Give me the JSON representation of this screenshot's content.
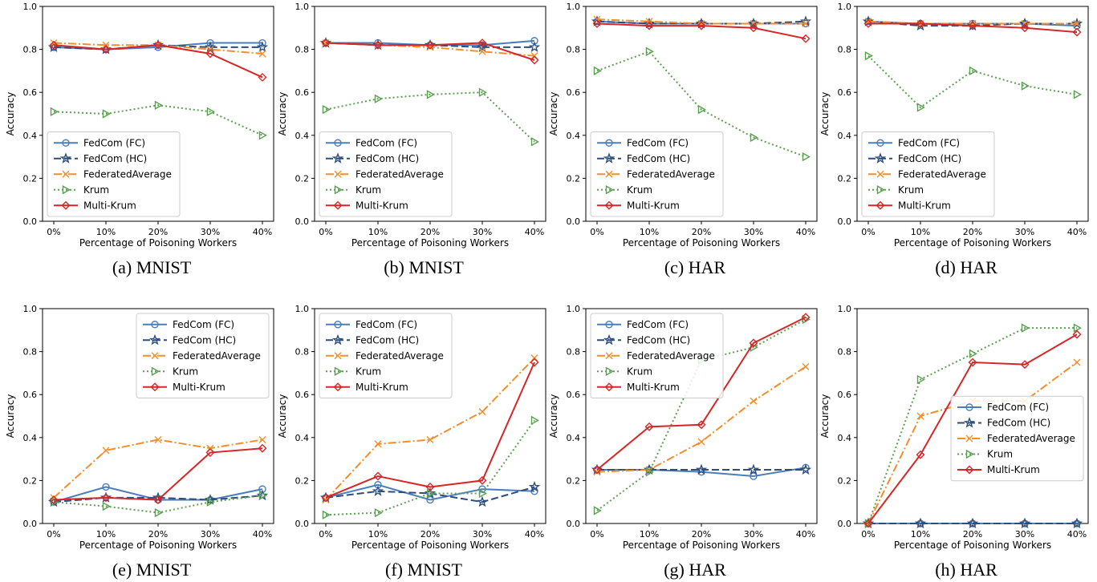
{
  "series_styles": {
    "FedCom (FC)": {
      "color": "#4a7ebb",
      "dash": "",
      "marker": "circle"
    },
    "FedCom (HC)": {
      "color": "#2e4d7a",
      "dash": "9,4",
      "marker": "star"
    },
    "FederatedAverage": {
      "color": "#f28e2b",
      "dash": "10,3,2,3",
      "marker": "x"
    },
    "Krum": {
      "color": "#59a14f",
      "dash": "2,3",
      "marker": "triangle"
    },
    "Multi-Krum": {
      "color": "#d62728",
      "dash": "",
      "marker": "diamond"
    }
  },
  "chart_data": [
    {
      "type": "line",
      "caption": "(a) MNIST",
      "categories": [
        "0%",
        "10%",
        "20%",
        "30%",
        "40%"
      ],
      "xlabel": "Percentage of Poisoning Workers",
      "ylabel": "Accuracy",
      "ylim": [
        0,
        1
      ],
      "yticks": [
        "0.0",
        "0.2",
        "0.4",
        "0.6",
        "0.8",
        "1.0"
      ],
      "grid": false,
      "legend_position": "lower-left",
      "series": [
        {
          "name": "FedCom (FC)",
          "values": [
            0.81,
            0.8,
            0.81,
            0.83,
            0.83
          ]
        },
        {
          "name": "FedCom (HC)",
          "values": [
            0.81,
            0.8,
            0.82,
            0.81,
            0.81
          ]
        },
        {
          "name": "FederatedAverage",
          "values": [
            0.83,
            0.82,
            0.82,
            0.8,
            0.78
          ]
        },
        {
          "name": "Krum",
          "values": [
            0.51,
            0.5,
            0.54,
            0.51,
            0.4
          ]
        },
        {
          "name": "Multi-Krum",
          "values": [
            0.82,
            0.8,
            0.82,
            0.78,
            0.67
          ]
        }
      ]
    },
    {
      "type": "line",
      "caption": "(b) MNIST",
      "categories": [
        "0%",
        "10%",
        "20%",
        "30%",
        "40%"
      ],
      "xlabel": "Percentage of Poisoning Workers",
      "ylabel": "Accuracy",
      "ylim": [
        0,
        1
      ],
      "yticks": [
        "0.0",
        "0.2",
        "0.4",
        "0.6",
        "0.8",
        "1.0"
      ],
      "grid": false,
      "legend_position": "lower-left",
      "series": [
        {
          "name": "FedCom (FC)",
          "values": [
            0.83,
            0.83,
            0.82,
            0.82,
            0.84
          ]
        },
        {
          "name": "FedCom (HC)",
          "values": [
            0.83,
            0.82,
            0.82,
            0.81,
            0.81
          ]
        },
        {
          "name": "FederatedAverage",
          "values": [
            0.83,
            0.82,
            0.81,
            0.79,
            0.77
          ]
        },
        {
          "name": "Krum",
          "values": [
            0.52,
            0.57,
            0.59,
            0.6,
            0.37
          ]
        },
        {
          "name": "Multi-Krum",
          "values": [
            0.83,
            0.82,
            0.82,
            0.83,
            0.75
          ]
        }
      ]
    },
    {
      "type": "line",
      "caption": "(c) HAR",
      "categories": [
        "0%",
        "10%",
        "20%",
        "30%",
        "40%"
      ],
      "xlabel": "Percentage of Poisoning Workers",
      "ylabel": "Accuracy",
      "ylim": [
        0,
        1
      ],
      "yticks": [
        "0.0",
        "0.2",
        "0.4",
        "0.6",
        "0.8",
        "1.0"
      ],
      "grid": false,
      "legend_position": "lower-left",
      "series": [
        {
          "name": "FedCom (FC)",
          "values": [
            0.93,
            0.92,
            0.92,
            0.92,
            0.92
          ]
        },
        {
          "name": "FedCom (HC)",
          "values": [
            0.93,
            0.92,
            0.92,
            0.92,
            0.93
          ]
        },
        {
          "name": "FederatedAverage",
          "values": [
            0.94,
            0.93,
            0.92,
            0.92,
            0.92
          ]
        },
        {
          "name": "Krum",
          "values": [
            0.7,
            0.79,
            0.52,
            0.39,
            0.3
          ]
        },
        {
          "name": "Multi-Krum",
          "values": [
            0.92,
            0.91,
            0.91,
            0.9,
            0.85
          ]
        }
      ]
    },
    {
      "type": "line",
      "caption": "(d) HAR",
      "categories": [
        "0%",
        "10%",
        "20%",
        "30%",
        "40%"
      ],
      "xlabel": "Percentage of Poisoning Workers",
      "ylabel": "Accuracy",
      "ylim": [
        0,
        1
      ],
      "yticks": [
        "0.0",
        "0.2",
        "0.4",
        "0.6",
        "0.8",
        "1.0"
      ],
      "grid": false,
      "legend_position": "lower-left",
      "series": [
        {
          "name": "FedCom (FC)",
          "values": [
            0.93,
            0.92,
            0.92,
            0.92,
            0.91
          ]
        },
        {
          "name": "FedCom (HC)",
          "values": [
            0.93,
            0.91,
            0.91,
            0.92,
            0.92
          ]
        },
        {
          "name": "FederatedAverage",
          "values": [
            0.93,
            0.92,
            0.92,
            0.92,
            0.92
          ]
        },
        {
          "name": "Krum",
          "values": [
            0.77,
            0.53,
            0.7,
            0.63,
            0.59
          ]
        },
        {
          "name": "Multi-Krum",
          "values": [
            0.92,
            0.92,
            0.91,
            0.9,
            0.88
          ]
        }
      ]
    },
    {
      "type": "line",
      "caption": "(e) MNIST",
      "categories": [
        "0%",
        "10%",
        "20%",
        "30%",
        "40%"
      ],
      "xlabel": "Percentage of Poisoning Workers",
      "ylabel": "Accuracy",
      "ylim": [
        0,
        1
      ],
      "yticks": [
        "0.0",
        "0.2",
        "0.4",
        "0.6",
        "0.8",
        "1.0"
      ],
      "grid": false,
      "legend_position": "top-right",
      "series": [
        {
          "name": "FedCom (FC)",
          "values": [
            0.1,
            0.17,
            0.11,
            0.11,
            0.16
          ]
        },
        {
          "name": "FedCom (HC)",
          "values": [
            0.1,
            0.12,
            0.12,
            0.11,
            0.13
          ]
        },
        {
          "name": "FederatedAverage",
          "values": [
            0.12,
            0.34,
            0.39,
            0.35,
            0.39
          ]
        },
        {
          "name": "Krum",
          "values": [
            0.1,
            0.08,
            0.05,
            0.1,
            0.13
          ]
        },
        {
          "name": "Multi-Krum",
          "values": [
            0.11,
            0.12,
            0.11,
            0.33,
            0.35
          ]
        }
      ]
    },
    {
      "type": "line",
      "caption": "(f) MNIST",
      "categories": [
        "0%",
        "10%",
        "20%",
        "30%",
        "40%"
      ],
      "xlabel": "Percentage of Poisoning Workers",
      "ylabel": "Accuracy",
      "ylim": [
        0,
        1
      ],
      "yticks": [
        "0.0",
        "0.2",
        "0.4",
        "0.6",
        "0.8",
        "1.0"
      ],
      "grid": false,
      "legend_position": "top-left",
      "series": [
        {
          "name": "FedCom (FC)",
          "values": [
            0.12,
            0.18,
            0.11,
            0.16,
            0.15
          ]
        },
        {
          "name": "FedCom (HC)",
          "values": [
            0.12,
            0.15,
            0.14,
            0.1,
            0.17
          ]
        },
        {
          "name": "FederatedAverage",
          "values": [
            0.11,
            0.37,
            0.39,
            0.52,
            0.77
          ]
        },
        {
          "name": "Krum",
          "values": [
            0.04,
            0.05,
            0.14,
            0.14,
            0.48
          ]
        },
        {
          "name": "Multi-Krum",
          "values": [
            0.12,
            0.22,
            0.17,
            0.2,
            0.75
          ]
        }
      ]
    },
    {
      "type": "line",
      "caption": "(g) HAR",
      "categories": [
        "0%",
        "10%",
        "20%",
        "30%",
        "40%"
      ],
      "xlabel": "Percentage of Poisoning Workers",
      "ylabel": "Accuracy",
      "ylim": [
        0,
        1
      ],
      "yticks": [
        "0.0",
        "0.2",
        "0.4",
        "0.6",
        "0.8",
        "1.0"
      ],
      "grid": false,
      "legend_position": "top-left",
      "series": [
        {
          "name": "FedCom (FC)",
          "values": [
            0.25,
            0.25,
            0.24,
            0.22,
            0.26
          ]
        },
        {
          "name": "FedCom (HC)",
          "values": [
            0.25,
            0.25,
            0.25,
            0.25,
            0.25
          ]
        },
        {
          "name": "FederatedAverage",
          "values": [
            0.24,
            0.25,
            0.38,
            0.57,
            0.73
          ]
        },
        {
          "name": "Krum",
          "values": [
            0.06,
            0.24,
            0.76,
            0.82,
            0.95
          ]
        },
        {
          "name": "Multi-Krum",
          "values": [
            0.25,
            0.45,
            0.46,
            0.84,
            0.96
          ]
        }
      ]
    },
    {
      "type": "line",
      "caption": "(h) HAR",
      "categories": [
        "0%",
        "10%",
        "20%",
        "30%",
        "40%"
      ],
      "xlabel": "Percentage of Poisoning Workers",
      "ylabel": "Accuracy",
      "ylim": [
        0,
        1
      ],
      "yticks": [
        "0.0",
        "0.2",
        "0.4",
        "0.6",
        "0.8",
        "1.0"
      ],
      "grid": false,
      "legend_position": "center-right",
      "series": [
        {
          "name": "FedCom (FC)",
          "values": [
            0.0,
            0.0,
            0.0,
            0.0,
            0.0
          ]
        },
        {
          "name": "FedCom (HC)",
          "values": [
            0.0,
            0.0,
            0.0,
            0.0,
            0.0
          ]
        },
        {
          "name": "FederatedAverage",
          "values": [
            0.0,
            0.5,
            0.57,
            0.57,
            0.75
          ]
        },
        {
          "name": "Krum",
          "values": [
            0.0,
            0.67,
            0.79,
            0.91,
            0.91
          ]
        },
        {
          "name": "Multi-Krum",
          "values": [
            0.0,
            0.32,
            0.75,
            0.74,
            0.88
          ]
        }
      ]
    }
  ]
}
